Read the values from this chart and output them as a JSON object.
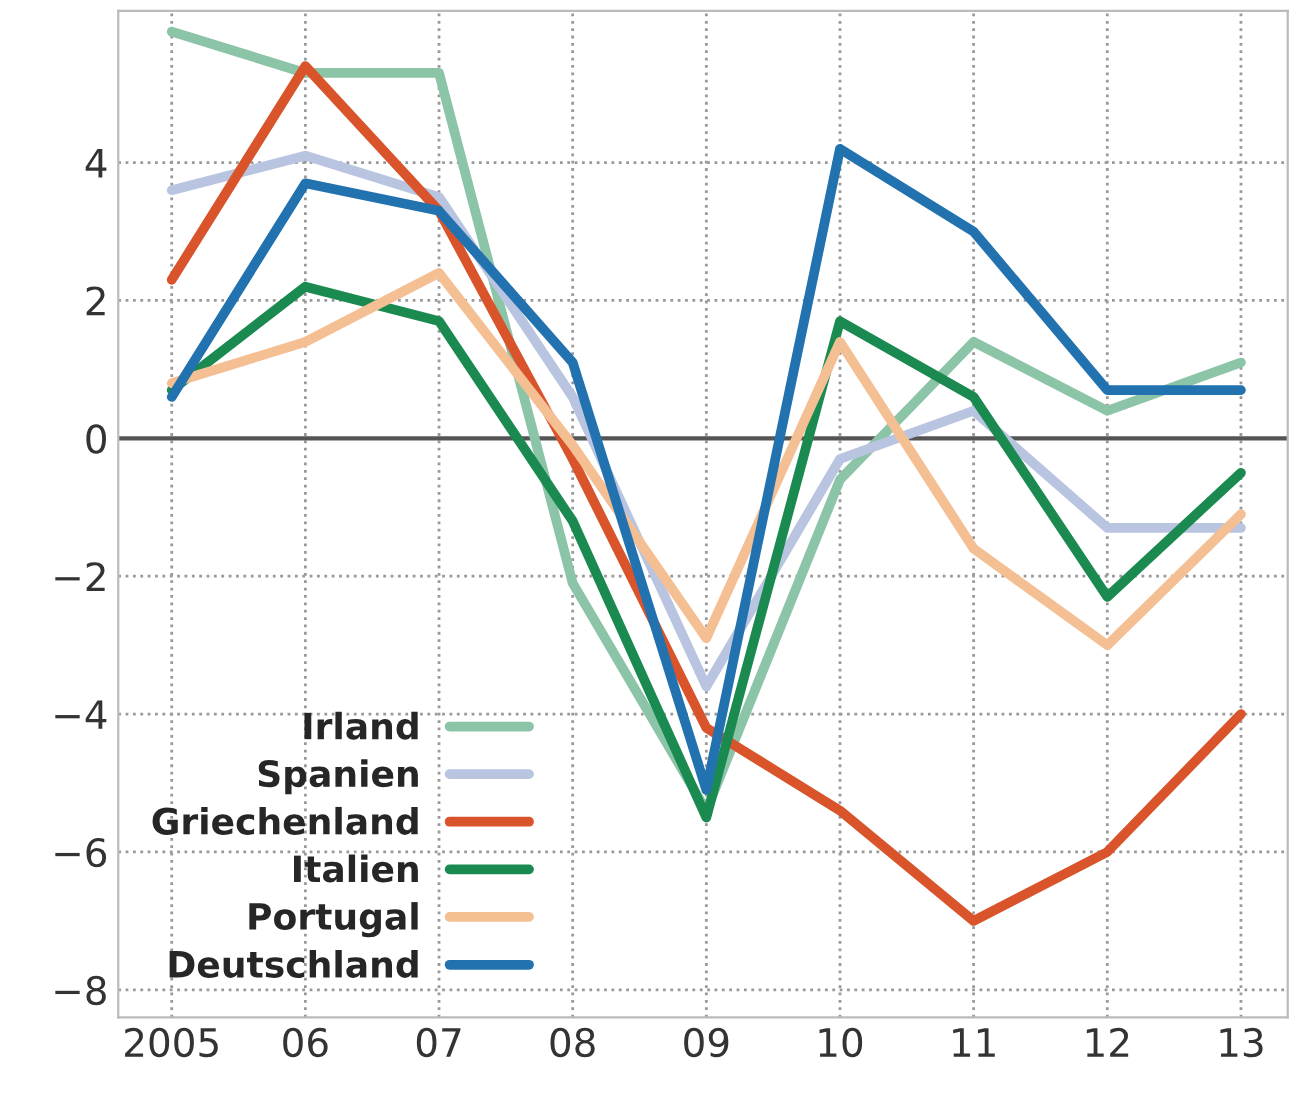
{
  "chart_data": {
    "type": "line",
    "x": [
      2005,
      2006,
      2007,
      2008,
      2009,
      2010,
      2011,
      2012,
      2013
    ],
    "xlim": [
      2004.6,
      2013.35
    ],
    "xticks": [
      2005,
      {
        "value": 2006,
        "label": "06"
      },
      {
        "value": 2007,
        "label": "07"
      },
      {
        "value": 2008,
        "label": "08"
      },
      {
        "value": 2009,
        "label": "09"
      },
      {
        "value": 2010,
        "label": "10"
      },
      {
        "value": 2011,
        "label": "11"
      },
      {
        "value": 2012,
        "label": "12"
      },
      {
        "value": 2013,
        "label": "13"
      }
    ],
    "ylim": [
      -8.4,
      6.2
    ],
    "yticks": [
      {
        "value": -8,
        "label": "−8"
      },
      {
        "value": -6,
        "label": "−6"
      },
      {
        "value": -4,
        "label": "−4"
      },
      {
        "value": -2,
        "label": "−2"
      },
      0,
      2,
      4
    ],
    "grid": true,
    "legend": "bottom left",
    "line_style": "solid",
    "ref_lines": [
      {
        "axis": "y",
        "value": 0,
        "color": "#555555"
      }
    ],
    "series": [
      {
        "name": "Irland",
        "color": "#8cc4a8",
        "values": [
          5.9,
          5.3,
          5.3,
          -2.1,
          -5.4,
          -0.6,
          1.4,
          0.4,
          1.1
        ]
      },
      {
        "name": "Spanien",
        "color": "#b8c4e0",
        "values": [
          3.6,
          4.1,
          3.5,
          0.6,
          -3.6,
          -0.3,
          0.4,
          -1.3,
          -1.3
        ]
      },
      {
        "name": "Griechenland",
        "color": "#d9532b",
        "values": [
          2.3,
          5.4,
          3.3,
          -0.3,
          -4.2,
          -5.4,
          -7.0,
          -6.0,
          -4.0
        ]
      },
      {
        "name": "Italien",
        "color": "#1a8a50",
        "values": [
          0.7,
          2.2,
          1.7,
          -1.2,
          -5.5,
          1.7,
          0.6,
          -2.3,
          -0.5
        ]
      },
      {
        "name": "Portugal",
        "color": "#f5bf94",
        "values": [
          0.8,
          1.4,
          2.4,
          -0.1,
          -2.9,
          1.4,
          -1.6,
          -3.0,
          -1.1
        ]
      },
      {
        "name": "Deutschland",
        "color": "#2272b0",
        "values": [
          0.6,
          3.7,
          3.3,
          1.1,
          -5.1,
          4.2,
          3.0,
          0.7,
          0.7
        ]
      }
    ]
  }
}
